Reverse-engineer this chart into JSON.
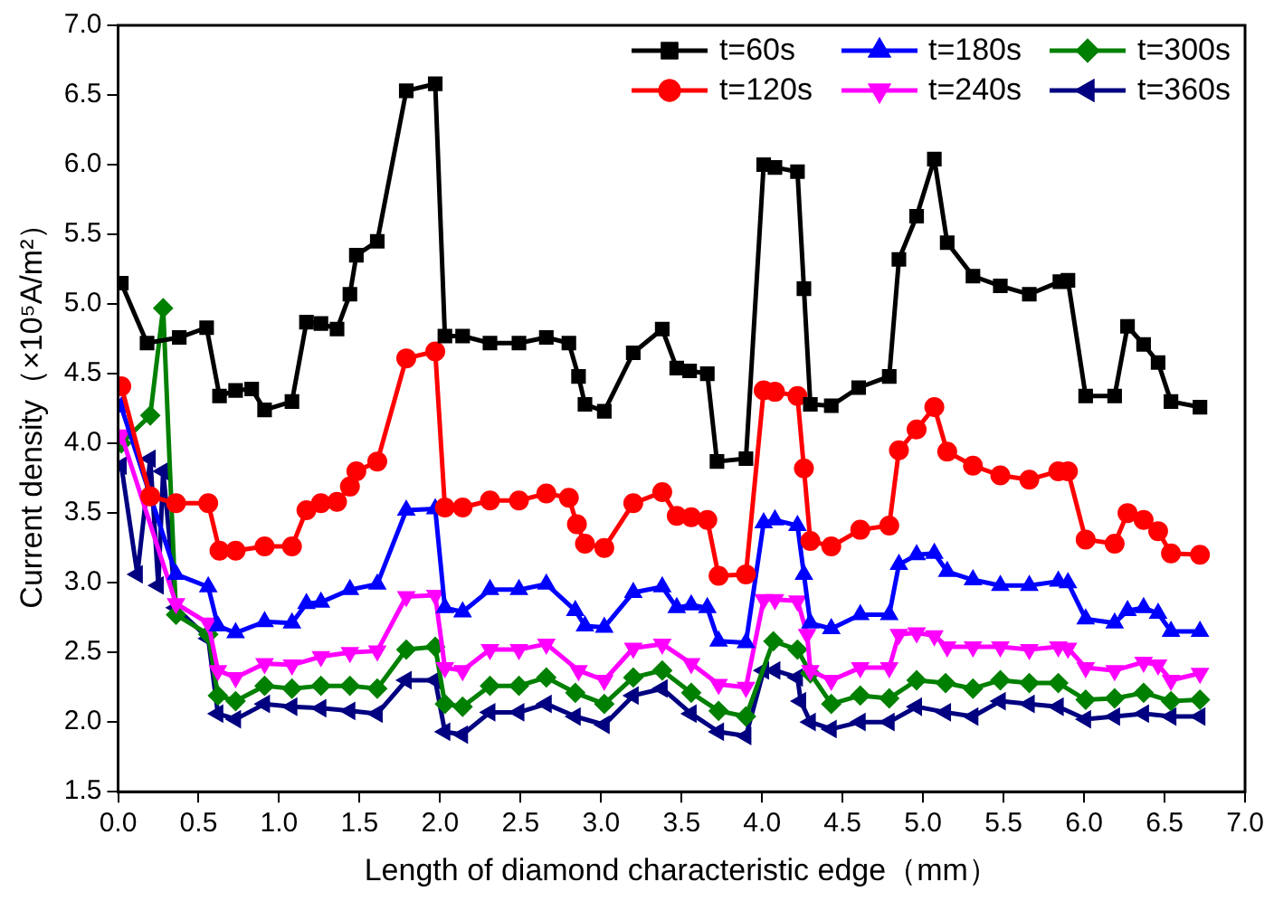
{
  "chart_data": {
    "type": "line",
    "xlabel": "Length of diamond characteristic edge（mm）",
    "ylabel": "Current density（×10⁵A/m²）",
    "xlim": [
      0,
      7
    ],
    "ylim": [
      1.5,
      7
    ],
    "xticks": [
      {
        "value": 0,
        "label": "0.0"
      },
      0.5,
      {
        "value": 1,
        "label": "1.0"
      },
      1.5,
      {
        "value": 2,
        "label": "2.0"
      },
      2.5,
      {
        "value": 3,
        "label": "3.0"
      },
      3.5,
      {
        "value": 4,
        "label": "4.0"
      },
      4.5,
      {
        "value": 5,
        "label": "5.0"
      },
      5.5,
      {
        "value": 6,
        "label": "6.0"
      },
      6.5,
      {
        "value": 7,
        "label": "7.0"
      }
    ],
    "yticks": [
      1.5,
      {
        "value": 2,
        "label": "2.0"
      },
      2.5,
      {
        "value": 3,
        "label": "3.0"
      },
      3.5,
      {
        "value": 4,
        "label": "4.0"
      },
      4.5,
      {
        "value": 5,
        "label": "5.0"
      },
      5.5,
      {
        "value": 6,
        "label": "6.0"
      },
      6.5,
      {
        "value": 7,
        "label": "7.0"
      }
    ],
    "grid": false,
    "legend": "top right",
    "line_style": "solid",
    "series": [
      {
        "name": "t=60s",
        "color": "#000000",
        "marker": "square",
        "x": [
          0.02,
          0.18,
          0.38,
          0.55,
          0.63,
          0.73,
          0.83,
          0.91,
          1.08,
          1.17,
          1.26,
          1.36,
          1.44,
          1.48,
          1.61,
          1.79,
          1.97,
          2.03,
          2.14,
          2.31,
          2.49,
          2.66,
          2.8,
          2.86,
          2.9,
          3.02,
          3.2,
          3.38,
          3.47,
          3.55,
          3.66,
          3.72,
          3.9,
          4.01,
          4.08,
          4.22,
          4.26,
          4.3,
          4.43,
          4.6,
          4.79,
          4.85,
          4.96,
          5.07,
          5.15,
          5.31,
          5.48,
          5.66,
          5.85,
          5.9,
          6.01,
          6.19,
          6.27,
          6.37,
          6.46,
          6.54,
          6.72
        ],
        "values": [
          5.15,
          4.72,
          4.76,
          4.83,
          4.34,
          4.38,
          4.39,
          4.24,
          4.3,
          4.87,
          4.86,
          4.82,
          5.07,
          5.35,
          5.45,
          6.53,
          6.58,
          4.77,
          4.77,
          4.72,
          4.72,
          4.76,
          4.72,
          4.48,
          4.28,
          4.23,
          4.65,
          4.82,
          4.54,
          4.52,
          4.5,
          3.87,
          3.89,
          6,
          5.98,
          5.95,
          5.11,
          4.28,
          4.27,
          4.4,
          4.48,
          5.32,
          5.63,
          6.04,
          5.44,
          5.2,
          5.13,
          5.07,
          5.16,
          5.17,
          4.34,
          4.34,
          4.84,
          4.71,
          4.58,
          4.3,
          4.26
        ]
      },
      {
        "name": "t=120s",
        "color": "#ff0000",
        "marker": "circle",
        "x": [
          0.02,
          0.2,
          0.36,
          0.56,
          0.63,
          0.73,
          0.91,
          1.08,
          1.17,
          1.26,
          1.36,
          1.44,
          1.48,
          1.61,
          1.79,
          1.97,
          2.03,
          2.14,
          2.31,
          2.49,
          2.66,
          2.8,
          2.85,
          2.9,
          3.02,
          3.2,
          3.38,
          3.47,
          3.56,
          3.66,
          3.73,
          3.9,
          4.01,
          4.08,
          4.22,
          4.26,
          4.3,
          4.43,
          4.61,
          4.79,
          4.85,
          4.96,
          5.07,
          5.15,
          5.31,
          5.48,
          5.66,
          5.84,
          5.9,
          6.01,
          6.19,
          6.27,
          6.37,
          6.46,
          6.54,
          6.72
        ],
        "values": [
          4.41,
          3.62,
          3.57,
          3.57,
          3.23,
          3.23,
          3.26,
          3.26,
          3.52,
          3.57,
          3.58,
          3.69,
          3.8,
          3.87,
          4.61,
          4.66,
          3.54,
          3.54,
          3.59,
          3.59,
          3.64,
          3.61,
          3.42,
          3.28,
          3.25,
          3.57,
          3.65,
          3.48,
          3.47,
          3.45,
          3.05,
          3.06,
          4.38,
          4.37,
          4.34,
          3.82,
          3.3,
          3.26,
          3.38,
          3.41,
          3.95,
          4.1,
          4.26,
          3.94,
          3.84,
          3.77,
          3.74,
          3.8,
          3.8,
          3.31,
          3.28,
          3.5,
          3.45,
          3.37,
          3.21,
          3.2
        ]
      },
      {
        "name": "t=180s",
        "color": "#0000ff",
        "marker": "triangle",
        "x": [
          0.02,
          0.36,
          0.56,
          0.62,
          0.73,
          0.91,
          1.08,
          1.17,
          1.26,
          1.44,
          1.61,
          1.79,
          1.97,
          2.03,
          2.14,
          2.31,
          2.49,
          2.66,
          2.84,
          2.9,
          3.02,
          3.2,
          3.38,
          3.47,
          3.56,
          3.66,
          3.73,
          3.9,
          4.01,
          4.08,
          4.22,
          4.26,
          4.3,
          4.43,
          4.61,
          4.79,
          4.85,
          4.96,
          5.07,
          5.15,
          5.31,
          5.48,
          5.66,
          5.84,
          5.9,
          6.01,
          6.19,
          6.27,
          6.37,
          6.46,
          6.54,
          6.72
        ],
        "values": [
          4.26,
          3.06,
          2.97,
          2.69,
          2.64,
          2.72,
          2.71,
          2.85,
          2.86,
          2.95,
          2.99,
          3.52,
          3.53,
          2.82,
          2.79,
          2.95,
          2.95,
          2.99,
          2.8,
          2.69,
          2.68,
          2.93,
          2.97,
          2.82,
          2.84,
          2.82,
          2.58,
          2.57,
          3.43,
          3.45,
          3.41,
          3.06,
          2.71,
          2.67,
          2.77,
          2.77,
          3.13,
          3.2,
          3.21,
          3.08,
          3.02,
          2.98,
          2.98,
          3.01,
          3.0,
          2.74,
          2.71,
          2.8,
          2.82,
          2.78,
          2.65,
          2.65
        ]
      },
      {
        "name": "t=240s",
        "color": "#ff00ff",
        "marker": "triangle-down",
        "x": [
          0.02,
          0.36,
          0.56,
          0.62,
          0.73,
          0.91,
          1.08,
          1.26,
          1.44,
          1.61,
          1.79,
          1.97,
          2.03,
          2.14,
          2.31,
          2.49,
          2.66,
          2.86,
          3.02,
          3.2,
          3.38,
          3.56,
          3.73,
          3.9,
          4.01,
          4.08,
          4.22,
          4.28,
          4.3,
          4.43,
          4.61,
          4.79,
          4.85,
          4.96,
          5.07,
          5.15,
          5.31,
          5.48,
          5.66,
          5.84,
          5.9,
          6.01,
          6.19,
          6.37,
          6.46,
          6.54,
          6.72
        ],
        "values": [
          4.06,
          2.85,
          2.71,
          2.37,
          2.32,
          2.42,
          2.41,
          2.47,
          2.5,
          2.51,
          2.9,
          2.91,
          2.39,
          2.37,
          2.52,
          2.52,
          2.56,
          2.37,
          2.3,
          2.53,
          2.56,
          2.42,
          2.27,
          2.25,
          2.88,
          2.88,
          2.87,
          2.63,
          2.37,
          2.3,
          2.39,
          2.39,
          2.63,
          2.64,
          2.62,
          2.54,
          2.54,
          2.54,
          2.52,
          2.54,
          2.53,
          2.39,
          2.37,
          2.43,
          2.41,
          2.3,
          2.35
        ]
      },
      {
        "name": "t=300s",
        "color": "#008000",
        "marker": "diamond",
        "x": [
          0.02,
          0.2,
          0.28,
          0.36,
          0.56,
          0.62,
          0.73,
          0.91,
          1.08,
          1.26,
          1.44,
          1.61,
          1.79,
          1.97,
          2.03,
          2.14,
          2.31,
          2.49,
          2.66,
          2.84,
          3.02,
          3.2,
          3.38,
          3.56,
          3.73,
          3.9,
          4.07,
          4.22,
          4.3,
          4.43,
          4.61,
          4.79,
          4.96,
          5.14,
          5.31,
          5.48,
          5.66,
          5.84,
          6.01,
          6.19,
          6.37,
          6.54,
          6.72
        ],
        "values": [
          4.0,
          4.2,
          4.97,
          2.77,
          2.63,
          2.19,
          2.15,
          2.26,
          2.24,
          2.26,
          2.26,
          2.24,
          2.52,
          2.54,
          2.13,
          2.11,
          2.26,
          2.26,
          2.32,
          2.21,
          2.13,
          2.32,
          2.37,
          2.21,
          2.08,
          2.04,
          2.58,
          2.52,
          2.35,
          2.13,
          2.19,
          2.17,
          2.3,
          2.28,
          2.24,
          2.3,
          2.28,
          2.28,
          2.16,
          2.17,
          2.21,
          2.15,
          2.16
        ]
      },
      {
        "name": "t=360s",
        "color": "#000080",
        "marker": "triangle-left",
        "x": [
          0.02,
          0.12,
          0.2,
          0.25,
          0.28,
          0.36,
          0.56,
          0.62,
          0.73,
          0.91,
          1.08,
          1.26,
          1.44,
          1.61,
          1.79,
          1.97,
          2.03,
          2.14,
          2.31,
          2.49,
          2.66,
          2.84,
          3.02,
          3.2,
          3.38,
          3.56,
          3.73,
          3.9,
          4.01,
          4.08,
          4.22,
          4.24,
          4.3,
          4.43,
          4.61,
          4.79,
          4.96,
          5.14,
          5.31,
          5.48,
          5.66,
          5.84,
          6.01,
          6.19,
          6.37,
          6.54,
          6.72
        ],
        "values": [
          3.84,
          3.06,
          3.89,
          2.98,
          3.8,
          2.82,
          2.6,
          2.06,
          2.02,
          2.13,
          2.11,
          2.1,
          2.08,
          2.06,
          2.3,
          2.3,
          1.93,
          1.91,
          2.07,
          2.07,
          2.13,
          2.04,
          1.98,
          2.19,
          2.24,
          2.06,
          1.93,
          1.9,
          2.37,
          2.37,
          2.32,
          2.15,
          2.0,
          1.95,
          2.0,
          2.0,
          2.11,
          2.07,
          2.04,
          2.15,
          2.13,
          2.11,
          2.02,
          2.04,
          2.06,
          2.04,
          2.04
        ]
      }
    ]
  }
}
